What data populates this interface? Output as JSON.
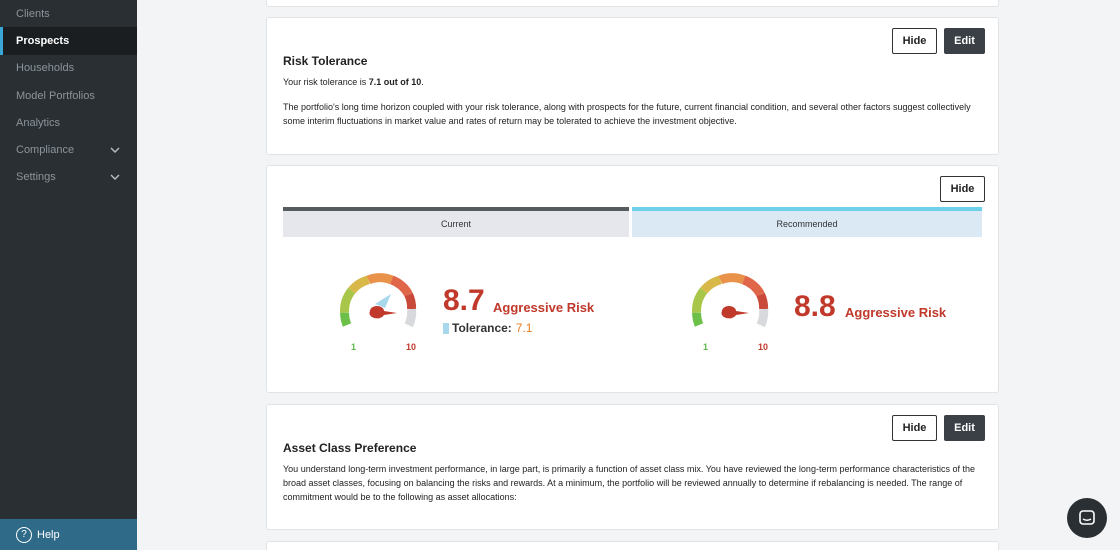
{
  "sidebar": {
    "items": [
      {
        "label": "Clients",
        "active": false,
        "has_chevron": false
      },
      {
        "label": "Prospects",
        "active": true,
        "has_chevron": false
      },
      {
        "label": "Households",
        "active": false,
        "has_chevron": false
      },
      {
        "label": "Model Portfolios",
        "active": false,
        "has_chevron": false
      },
      {
        "label": "Analytics",
        "active": false,
        "has_chevron": false
      },
      {
        "label": "Compliance",
        "active": false,
        "has_chevron": true
      },
      {
        "label": "Settings",
        "active": false,
        "has_chevron": true
      }
    ],
    "help_label": "Help",
    "help_glyph": "?"
  },
  "risk_tolerance": {
    "title": "Risk Tolerance",
    "hide_label": "Hide",
    "edit_label": "Edit",
    "summary_prefix": "Your risk tolerance is ",
    "summary_value": "7.1 out of 10",
    "summary_suffix": ".",
    "paragraph": "The portfolio's long time horizon coupled with your risk tolerance, along with prospects for the future, current financial condition, and several other factors suggest collectively some interim fluctuations in market value and rates of return may be tolerated to achieve the investment objective."
  },
  "comparison": {
    "hide_label": "Hide",
    "tabs": {
      "current": "Current",
      "recommended": "Recommended"
    },
    "current": {
      "score": "8.7",
      "label": "Aggressive Risk",
      "tolerance_label": "Tolerance:",
      "tolerance_value": "7.1",
      "min": "1",
      "max": "10"
    },
    "recommended": {
      "score": "8.8",
      "label": "Aggressive Risk",
      "min": "1",
      "max": "10"
    }
  },
  "asset_class": {
    "title": "Asset Class Preference",
    "hide_label": "Hide",
    "edit_label": "Edit",
    "paragraph": "You understand long-term investment performance, in large part, is primarily a function of asset class mix. You have reviewed the long-term performance characteristics of the broad asset classes, focusing on balancing the risks and rewards. At a minimum, the portfolio will be reviewed annually to determine if rebalancing is needed. The range of commitment would be to the following as asset allocations:"
  },
  "colors": {
    "accent": "#3ba7d6",
    "danger": "#c0392b",
    "success": "#5cb84a",
    "warning": "#e67e22"
  },
  "icons": {
    "help": "help-circle-icon",
    "chevron": "chevron-down-icon",
    "chat": "chat-icon"
  }
}
